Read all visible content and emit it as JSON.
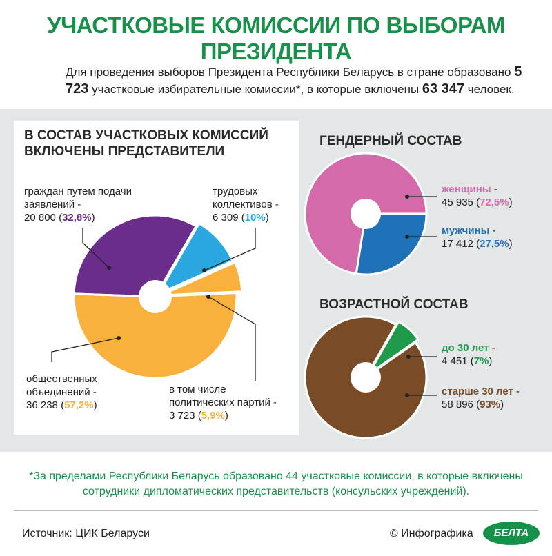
{
  "title": "УЧАСТКОВЫЕ КОМИССИИ ПО ВЫБОРАМ ПРЕЗИДЕНТА",
  "intro": [
    "Для проведения выборов Президента Республики Беларусь в стране образовано ",
    "5 723",
    " участковые избирательные комиссии*, в которые включены ",
    "63 347",
    " человек."
  ],
  "chart_data": [
    {
      "type": "pie",
      "title": "В СОСТАВ УЧАСТКОВЫХ КОМИССИЙ ВКЛЮЧЕНЫ ПРЕДСТАВИТЕЛИ",
      "categories": [
        "граждан путем подачи заявлений -",
        "трудовых коллективов -",
        "общественных объединений -",
        "в том числе политических партий -"
      ],
      "values": [
        32.8,
        10,
        57.2,
        5.9
      ],
      "value_labels": [
        "32,8%",
        "10%",
        "57,2%",
        "5,9%"
      ],
      "counts": [
        20800,
        6309,
        36238,
        3723
      ],
      "count_labels": [
        "20 800",
        "6 309",
        "36 238",
        "3 723"
      ],
      "part_of": [
        null,
        null,
        null,
        2
      ],
      "colors": [
        "#6a2d8c",
        "#29a8df",
        "#f9b03c",
        "#f9b03c"
      ]
    },
    {
      "type": "pie",
      "title": "ГЕНДЕРНЫЙ СОСТАВ",
      "categories": [
        "женщины",
        "мужчины"
      ],
      "values": [
        72.5,
        27.5
      ],
      "value_labels": [
        "72,5%",
        "27,5%"
      ],
      "counts": [
        45935,
        17412
      ],
      "count_labels": [
        "45 935",
        "17 412"
      ],
      "colors": [
        "#d46aa9",
        "#1f72b8"
      ]
    },
    {
      "type": "pie",
      "title": "ВОЗРАСТНОЙ СОСТАВ",
      "categories": [
        "до 30 лет",
        "старше 30 лет"
      ],
      "values": [
        7,
        93
      ],
      "value_labels": [
        "7%",
        "93%"
      ],
      "counts": [
        4451,
        58896
      ],
      "count_labels": [
        "4 451",
        "58 896"
      ],
      "colors": [
        "#1e9a4a",
        "#7a4b27"
      ]
    }
  ],
  "footnote": "*За пределами Республики Беларусь образовано 44 участковые комиссии, в которые включены сотрудники дипломатических представительств (консульских учреждений).",
  "source": "Источник: ЦИК Беларуси",
  "credit": "© Инфографика",
  "logo": "БЕЛТА"
}
